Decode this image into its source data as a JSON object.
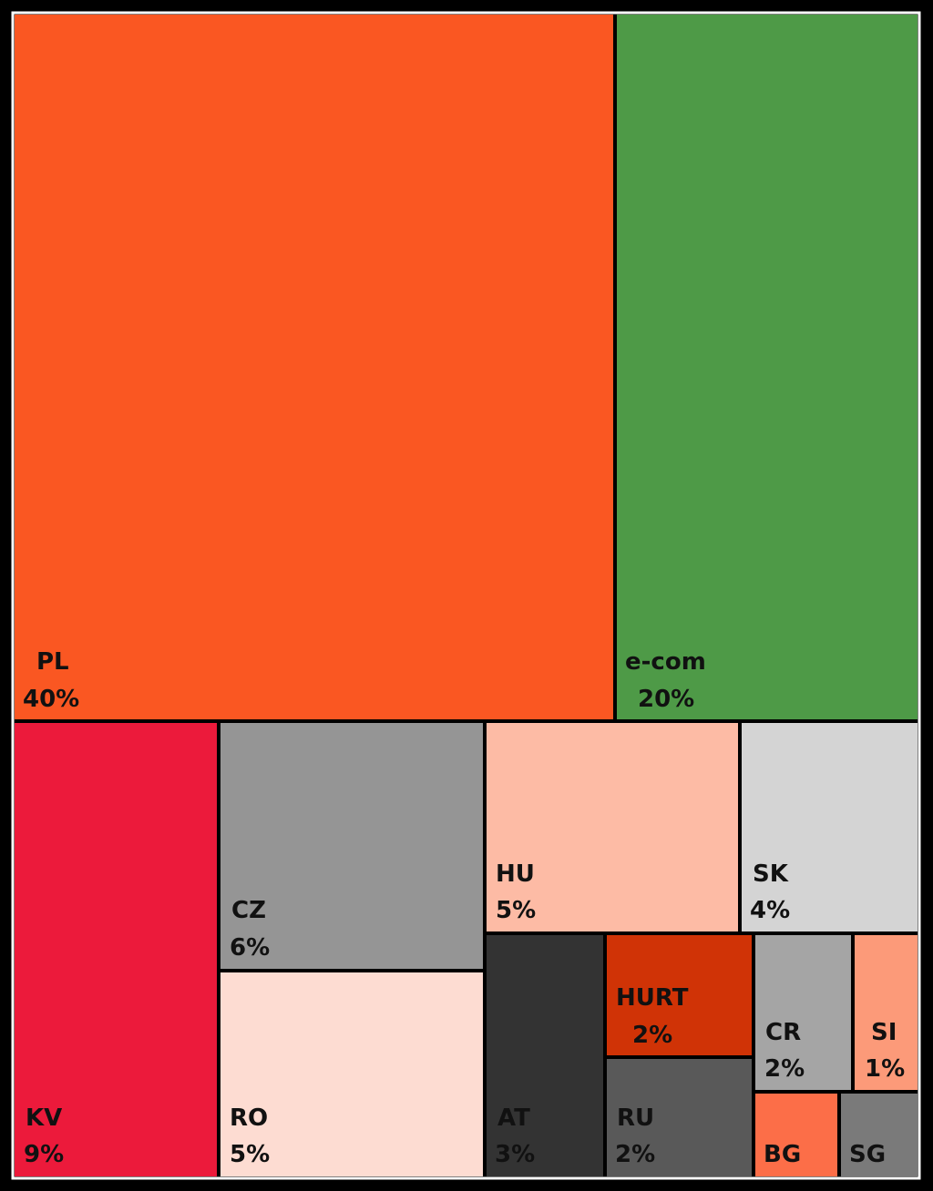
{
  "chart_data": {
    "type": "treemap",
    "title": "",
    "items": [
      {
        "label": "PL",
        "value_label": "40%",
        "value": 40,
        "color": "#fa5722"
      },
      {
        "label": "e-com",
        "value_label": "20%",
        "value": 20,
        "color": "#4e9a47"
      },
      {
        "label": "KV",
        "value_label": "9%",
        "value": 9,
        "color": "#ec1a3b"
      },
      {
        "label": "CZ",
        "value_label": "6%",
        "value": 6,
        "color": "#959595"
      },
      {
        "label": "RO",
        "value_label": "5%",
        "value": 5,
        "color": "#fddcd2"
      },
      {
        "label": "HU",
        "value_label": "5%",
        "value": 5,
        "color": "#fdbba5"
      },
      {
        "label": "SK",
        "value_label": "4%",
        "value": 4,
        "color": "#d4d4d4"
      },
      {
        "label": "AT",
        "value_label": "3%",
        "value": 3,
        "color": "#333333"
      },
      {
        "label": "HURT",
        "value_label": "2%",
        "value": 2,
        "color": "#d03306"
      },
      {
        "label": "RU",
        "value_label": "2%",
        "value": 2,
        "color": "#595959"
      },
      {
        "label": "CR",
        "value_label": "2%",
        "value": 2,
        "color": "#a5a5a5"
      },
      {
        "label": "SI",
        "value_label": "1%",
        "value": 1,
        "color": "#fc9a79"
      },
      {
        "label": "BG",
        "value_label": "",
        "value": 1,
        "color": "#fc6e48"
      },
      {
        "label": "SG",
        "value_label": "",
        "value": 1,
        "color": "#7a7a7a"
      }
    ]
  }
}
